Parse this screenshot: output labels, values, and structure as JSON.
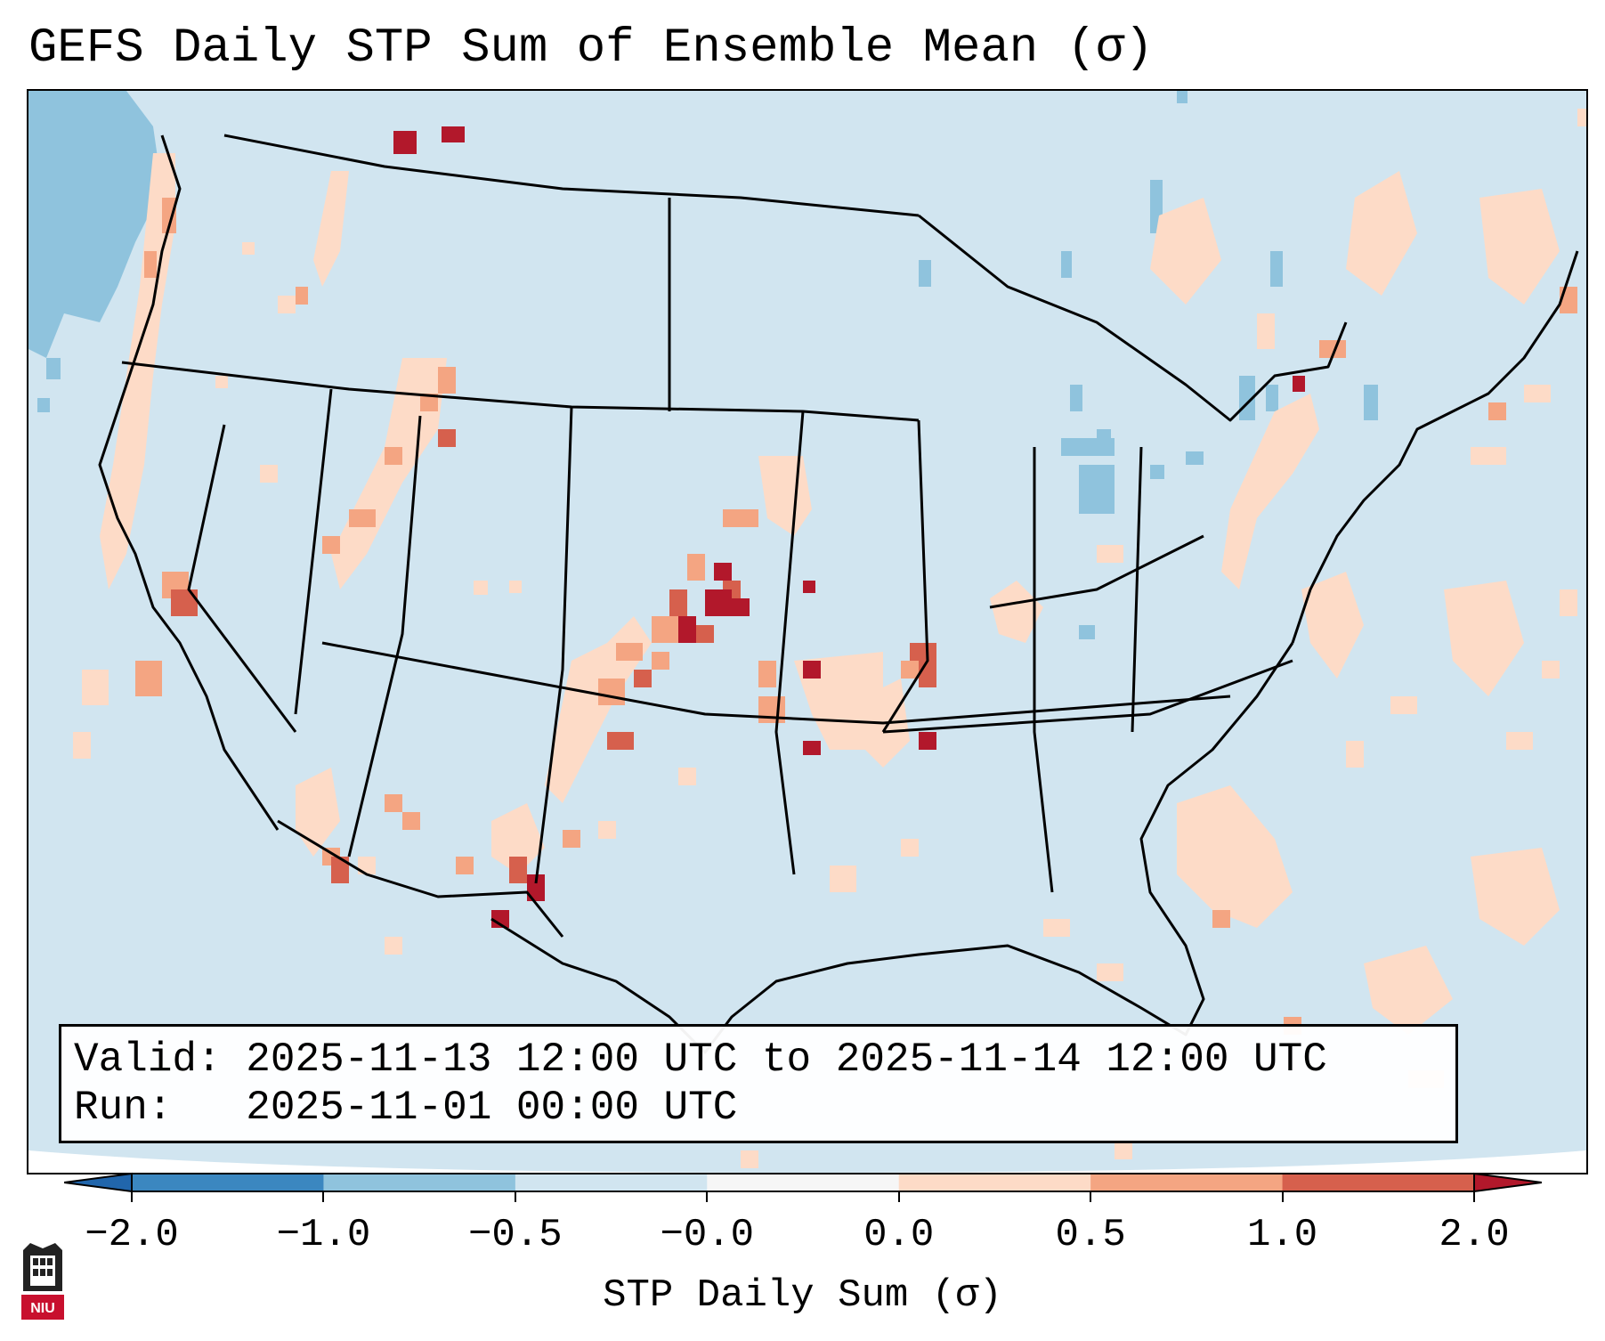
{
  "title": "GEFS Daily STP Sum of Ensemble Mean (σ)",
  "valid_label": "Valid:",
  "valid_value": "2025-11-13 12:00 UTC to 2025-11-14 12:00 UTC",
  "run_label": "Run:",
  "run_value": "2025-11-01 00:00 UTC",
  "colorbar": {
    "label": "STP Daily Sum (σ)",
    "ticks": [
      "−2.0",
      "−1.0",
      "−0.5",
      "−0.0",
      "0.0",
      "0.5",
      "1.0",
      "2.0"
    ],
    "colors": [
      "#3b87c0",
      "#8fc3dd",
      "#d1e5f0",
      "#f6f6f6",
      "#fddbc7",
      "#f4a582",
      "#d6604d"
    ],
    "extend_low_color": "#2166ac",
    "extend_high_color": "#b2182b"
  },
  "map": {
    "background_color": "#d1e5f0",
    "projection": "lambert-conformal",
    "hotspot_color": "#b2182b"
  },
  "logo": {
    "text": "NIU"
  }
}
